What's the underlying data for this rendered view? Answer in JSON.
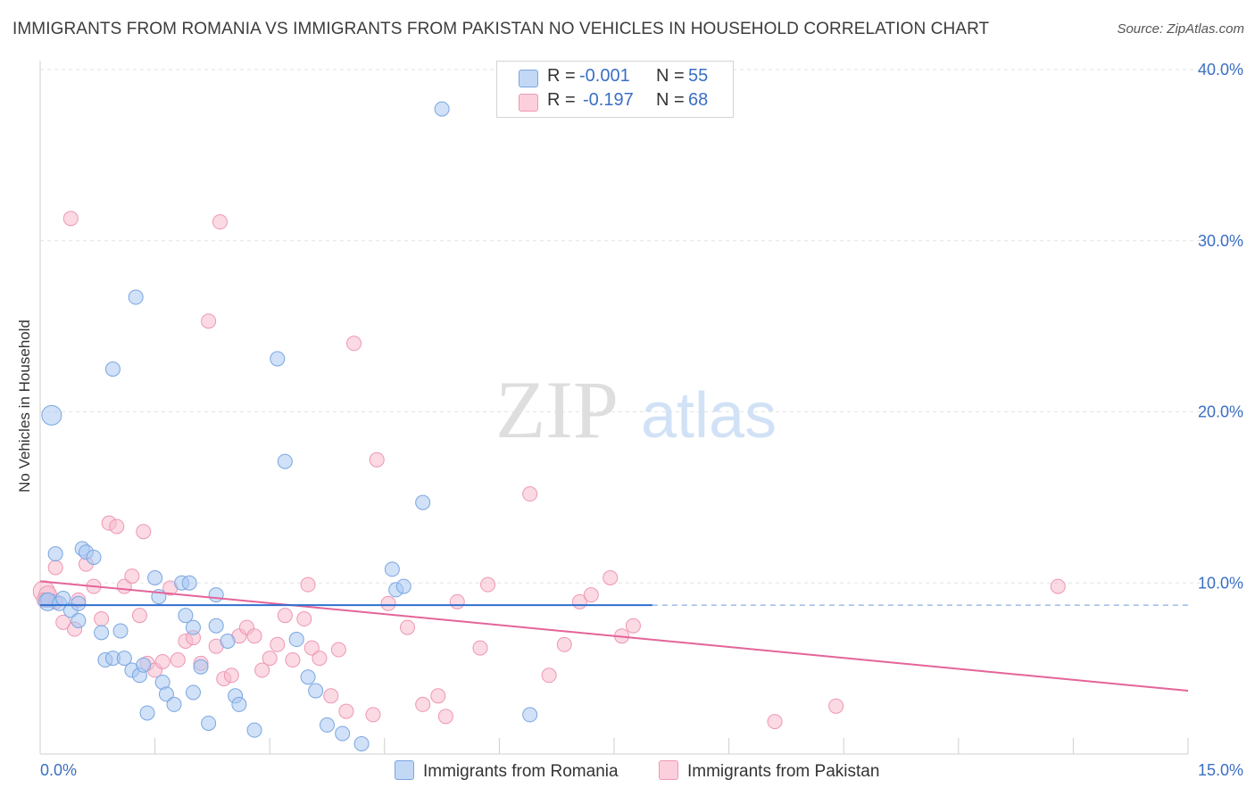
{
  "title": "IMMIGRANTS FROM ROMANIA VS IMMIGRANTS FROM PAKISTAN NO VEHICLES IN HOUSEHOLD CORRELATION CHART",
  "source": "Source: ZipAtlas.com",
  "watermark": {
    "zip": "ZIP",
    "atlas": "atlas"
  },
  "legend": {
    "r_label": "R =",
    "n_label": "N =",
    "series": [
      {
        "r": "-0.001",
        "n": "55"
      },
      {
        "r": "-0.197",
        "n": "68"
      }
    ]
  },
  "colors": {
    "romania_fill": "#a9c9f2",
    "romania_stroke": "#7aa6e0",
    "romania_line": "#2f6fcf",
    "pakistan_fill": "#f7bccd",
    "pakistan_stroke": "#ee97b2",
    "pakistan_line": "#e4649a",
    "tick_label": "#3a6fc4",
    "grid": "#e3e3e3"
  },
  "chart_data": {
    "type": "scatter",
    "title": "IMMIGRANTS FROM ROMANIA VS IMMIGRANTS FROM PAKISTAN NO VEHICLES IN HOUSEHOLD CORRELATION CHART",
    "xlabel": "",
    "ylabel": "No Vehicles in Household",
    "xlim": [
      0,
      15
    ],
    "ylim": [
      0,
      40
    ],
    "x_tick_labels": [
      "0.0%",
      "15.0%"
    ],
    "y_ticks": [
      10,
      20,
      30,
      40
    ],
    "y_tick_labels": [
      "10.0%",
      "20.0%",
      "30.0%",
      "40.0%"
    ],
    "grid": true,
    "legend_position": "top-center",
    "series": [
      {
        "name": "Immigrants from Romania",
        "r": -0.001,
        "n": 55,
        "trend": {
          "x": [
            0,
            8.0
          ],
          "y": [
            8.7,
            8.7
          ],
          "dashed_to_x": 15
        },
        "points": [
          [
            0.1,
            9.0
          ],
          [
            0.1,
            8.9
          ],
          [
            0.15,
            19.8
          ],
          [
            0.2,
            11.7
          ],
          [
            0.25,
            8.8
          ],
          [
            0.3,
            9.1
          ],
          [
            0.4,
            8.4
          ],
          [
            0.5,
            7.8
          ],
          [
            0.55,
            12.0
          ],
          [
            0.6,
            11.8
          ],
          [
            0.7,
            11.5
          ],
          [
            0.8,
            7.1
          ],
          [
            0.85,
            5.5
          ],
          [
            0.95,
            5.6
          ],
          [
            1.05,
            7.2
          ],
          [
            1.1,
            5.6
          ],
          [
            1.2,
            4.9
          ],
          [
            1.3,
            4.6
          ],
          [
            1.35,
            5.2
          ],
          [
            1.4,
            2.4
          ],
          [
            1.5,
            10.3
          ],
          [
            1.55,
            9.2
          ],
          [
            1.6,
            4.2
          ],
          [
            1.65,
            3.5
          ],
          [
            1.75,
            2.9
          ],
          [
            1.85,
            10.0
          ],
          [
            1.9,
            8.1
          ],
          [
            2.0,
            3.6
          ],
          [
            2.0,
            7.4
          ],
          [
            2.1,
            5.1
          ],
          [
            2.2,
            1.8
          ],
          [
            2.3,
            7.5
          ],
          [
            2.3,
            9.3
          ],
          [
            2.45,
            6.6
          ],
          [
            2.55,
            3.4
          ],
          [
            2.6,
            2.9
          ],
          [
            2.8,
            1.4
          ],
          [
            3.1,
            23.1
          ],
          [
            3.2,
            17.1
          ],
          [
            3.35,
            6.7
          ],
          [
            3.5,
            4.5
          ],
          [
            3.6,
            3.7
          ],
          [
            3.75,
            1.7
          ],
          [
            3.95,
            1.2
          ],
          [
            4.2,
            0.6
          ],
          [
            4.6,
            10.8
          ],
          [
            4.65,
            9.6
          ],
          [
            4.75,
            9.8
          ],
          [
            5.0,
            14.7
          ],
          [
            5.25,
            37.7
          ],
          [
            1.25,
            26.7
          ],
          [
            0.95,
            22.5
          ],
          [
            1.95,
            10.0
          ],
          [
            6.4,
            2.3
          ],
          [
            0.5,
            8.8
          ]
        ]
      },
      {
        "name": "Immigrants from Pakistan",
        "r": -0.197,
        "n": 68,
        "trend": {
          "x": [
            0,
            15
          ],
          "y": [
            10.1,
            3.7
          ]
        },
        "points": [
          [
            0.05,
            9.5
          ],
          [
            0.1,
            9.3
          ],
          [
            0.2,
            10.9
          ],
          [
            0.3,
            7.7
          ],
          [
            0.4,
            31.3
          ],
          [
            0.45,
            7.3
          ],
          [
            0.5,
            9.0
          ],
          [
            0.6,
            11.1
          ],
          [
            0.7,
            9.8
          ],
          [
            0.8,
            7.9
          ],
          [
            0.9,
            13.5
          ],
          [
            1.0,
            13.3
          ],
          [
            1.1,
            9.8
          ],
          [
            1.2,
            10.4
          ],
          [
            1.3,
            8.1
          ],
          [
            1.35,
            13.0
          ],
          [
            1.4,
            5.3
          ],
          [
            1.5,
            4.9
          ],
          [
            1.6,
            5.4
          ],
          [
            1.7,
            9.7
          ],
          [
            1.8,
            5.5
          ],
          [
            1.9,
            6.6
          ],
          [
            2.0,
            6.8
          ],
          [
            2.1,
            5.3
          ],
          [
            2.2,
            25.3
          ],
          [
            2.3,
            6.3
          ],
          [
            2.35,
            31.1
          ],
          [
            2.4,
            4.4
          ],
          [
            2.5,
            4.6
          ],
          [
            2.6,
            6.9
          ],
          [
            2.7,
            7.4
          ],
          [
            2.8,
            6.9
          ],
          [
            2.9,
            4.9
          ],
          [
            3.0,
            5.6
          ],
          [
            3.1,
            6.4
          ],
          [
            3.2,
            8.1
          ],
          [
            3.3,
            5.5
          ],
          [
            3.45,
            7.9
          ],
          [
            3.5,
            9.9
          ],
          [
            3.55,
            6.2
          ],
          [
            3.65,
            5.6
          ],
          [
            3.8,
            3.4
          ],
          [
            3.9,
            6.1
          ],
          [
            4.0,
            2.5
          ],
          [
            4.1,
            24.0
          ],
          [
            4.35,
            2.3
          ],
          [
            4.4,
            17.2
          ],
          [
            4.55,
            8.8
          ],
          [
            4.8,
            7.4
          ],
          [
            5.0,
            2.9
          ],
          [
            5.2,
            3.4
          ],
          [
            5.3,
            2.2
          ],
          [
            5.45,
            8.9
          ],
          [
            5.75,
            6.2
          ],
          [
            5.85,
            9.9
          ],
          [
            6.4,
            15.2
          ],
          [
            6.65,
            4.6
          ],
          [
            6.85,
            6.4
          ],
          [
            7.05,
            8.9
          ],
          [
            7.2,
            9.3
          ],
          [
            7.45,
            10.3
          ],
          [
            7.6,
            6.9
          ],
          [
            7.75,
            7.5
          ],
          [
            9.6,
            1.9
          ],
          [
            10.4,
            2.8
          ],
          [
            13.3,
            9.8
          ],
          [
            0.05,
            9.0
          ],
          [
            0.2,
            8.9
          ]
        ]
      }
    ]
  },
  "bottom_legend": [
    "Immigrants from Romania",
    "Immigrants from Pakistan"
  ]
}
